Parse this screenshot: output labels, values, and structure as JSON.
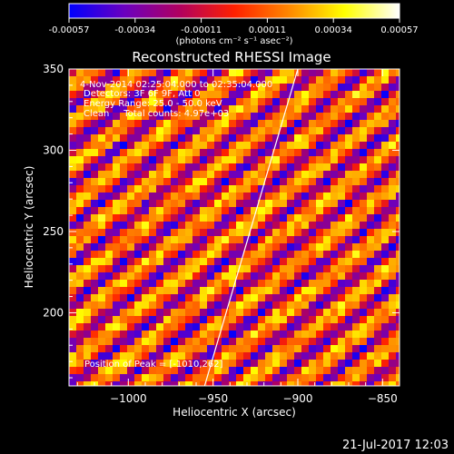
{
  "colorbar": {
    "ticks": [
      "-0.00057",
      "-0.00034",
      "-0.00011",
      "0.00011",
      "0.00034",
      "0.00057"
    ],
    "unit_label": "(photons cm⁻² s⁻¹ asec⁻²)",
    "colors": [
      "#0000ff",
      "#6a00c0",
      "#b00060",
      "#ff2000",
      "#ff8800",
      "#ffff00",
      "#ffffff"
    ]
  },
  "chart_data": {
    "type": "heatmap",
    "title": "Reconstructed RHESSI Image",
    "xlabel": "Heliocentric X (arcsec)",
    "ylabel": "Heliocentric Y (arcsec)",
    "xlim": [
      -1035,
      -840
    ],
    "ylim": [
      155,
      350
    ],
    "xticks": [
      -1000,
      -950,
      -900,
      -850
    ],
    "xtick_labels": [
      "−1000",
      "−950",
      "−900",
      "−850"
    ],
    "yticks": [
      200,
      250,
      300,
      350
    ],
    "ytick_labels": [
      "200",
      "250",
      "300",
      "350"
    ],
    "value_range": [
      -0.00057,
      0.00057
    ],
    "pattern": "diagonal fringe stripes",
    "limb_line": [
      [
        -955,
        155
      ],
      [
        -900,
        350
      ]
    ],
    "annotations": {
      "time": "4-Nov-2014 02:25:04.000 to 02:35:04.000",
      "detectors": "Detectors: 3F 6F 9F, Att 0",
      "energy": "Energy Range: 25.0 - 50.0 keV",
      "method": "Clean     Total counts: 4.97e+03",
      "peak": "Position of Peak = [-1010,262]"
    }
  },
  "footer": {
    "date": "21-Jul-2017 12:03"
  }
}
